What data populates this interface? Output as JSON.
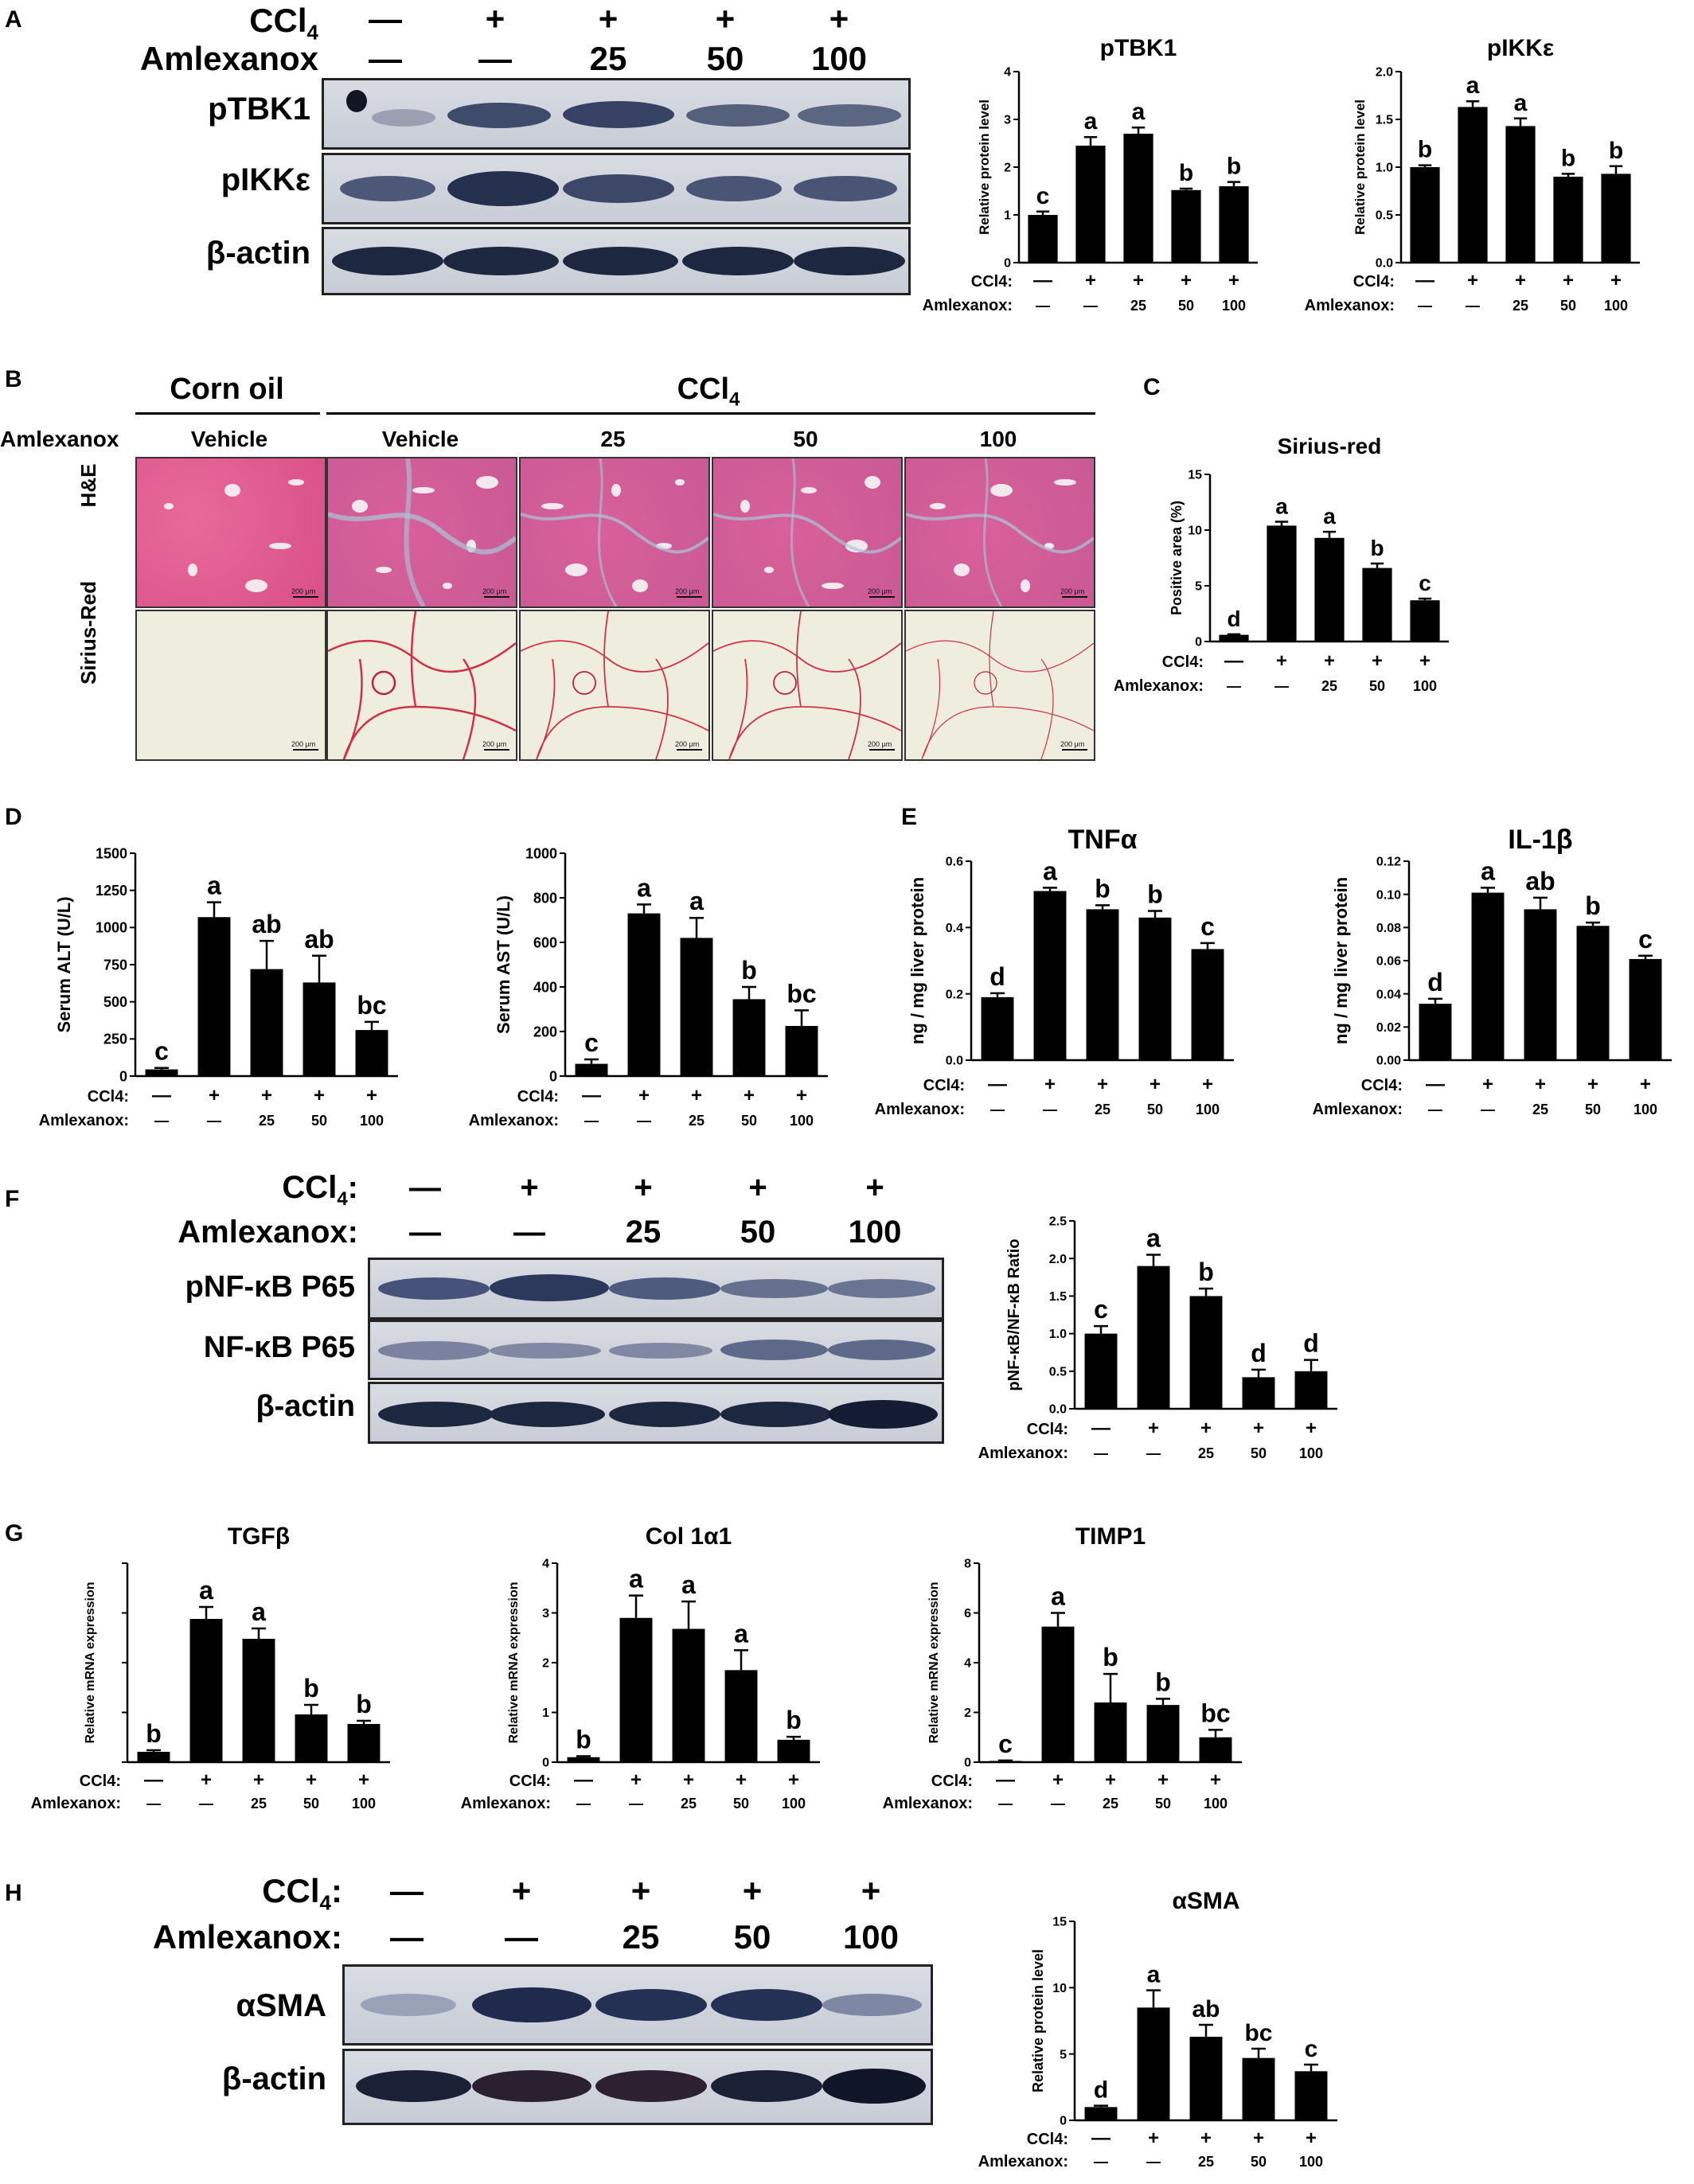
{
  "panels": {
    "A": {
      "letter": "A",
      "conditions": {
        "ccl4_label": "CCl4",
        "amlexanox_label": "Amlexanox",
        "ccl4": [
          "—",
          "+",
          "+",
          "+",
          "+"
        ],
        "amlexanox": [
          "—",
          "—",
          "25",
          "50",
          "100"
        ]
      },
      "blot_labels": [
        "pTBK1",
        "pIKKε",
        "β-actin"
      ]
    },
    "B": {
      "letter": "B",
      "group_corn_oil": "Corn oil",
      "group_ccl4": "CCl4",
      "amlexanox_label": "Amlexanox",
      "columns": [
        "Vehicle",
        "Vehicle",
        "25",
        "50",
        "100"
      ],
      "rows": [
        "H&E",
        "Sirius-Red"
      ],
      "scale_bar": "200 μm"
    },
    "C": {
      "letter": "C"
    },
    "D": {
      "letter": "D"
    },
    "E": {
      "letter": "E"
    },
    "F": {
      "letter": "F",
      "conditions": {
        "ccl4_label": "CCl4:",
        "amlexanox_label": "Amlexanox:",
        "ccl4": [
          "—",
          "+",
          "+",
          "+",
          "+"
        ],
        "amlexanox": [
          "—",
          "—",
          "25",
          "50",
          "100"
        ]
      },
      "blot_labels": [
        "pNF-κB P65",
        "NF-κB P65",
        "β-actin"
      ]
    },
    "G": {
      "letter": "G"
    },
    "H": {
      "letter": "H",
      "conditions": {
        "ccl4_label": "CCl4:",
        "amlexanox_label": "Amlexanox:",
        "ccl4": [
          "—",
          "+",
          "+",
          "+",
          "+"
        ],
        "amlexanox": [
          "—",
          "—",
          "25",
          "50",
          "100"
        ]
      },
      "blot_labels": [
        "αSMA",
        "β-actin"
      ]
    }
  },
  "x_conditions": {
    "ccl4_label": "CCl4:",
    "amlexanox_label": "Amlexanox:",
    "ccl4": [
      "—",
      "+",
      "+",
      "+",
      "+"
    ],
    "amlexanox": [
      "—",
      "—",
      "25",
      "50",
      "100"
    ]
  },
  "chart_data": [
    {
      "id": "pTBK1",
      "type": "bar",
      "title": "pTBK1",
      "ylabel": "Relative protein level",
      "categories": [
        "1",
        "2",
        "3",
        "4",
        "5"
      ],
      "values": [
        1.0,
        2.45,
        2.7,
        1.52,
        1.6
      ],
      "errors": [
        0.07,
        0.18,
        0.13,
        0.03,
        0.09
      ],
      "letters": [
        "c",
        "a",
        "a",
        "b",
        "b"
      ],
      "ylim": [
        0,
        4
      ],
      "yticks": [
        0,
        1,
        2,
        3,
        4
      ]
    },
    {
      "id": "pIKKe",
      "type": "bar",
      "title": "pIKKε",
      "ylabel": "Relative protein level",
      "categories": [
        "1",
        "2",
        "3",
        "4",
        "5"
      ],
      "values": [
        1.0,
        1.63,
        1.43,
        0.9,
        0.93
      ],
      "errors": [
        0.02,
        0.06,
        0.08,
        0.03,
        0.08
      ],
      "letters": [
        "b",
        "a",
        "a",
        "b",
        "b"
      ],
      "ylim": [
        0,
        2.0
      ],
      "yticks": [
        0.0,
        0.5,
        1.0,
        1.5,
        2.0
      ]
    },
    {
      "id": "sirius",
      "type": "bar",
      "title": "Sirius-red",
      "ylabel": "Positive area (%)",
      "categories": [
        "1",
        "2",
        "3",
        "4",
        "5"
      ],
      "values": [
        0.6,
        10.4,
        9.3,
        6.6,
        3.7
      ],
      "errors": [
        0.05,
        0.35,
        0.55,
        0.4,
        0.15
      ],
      "letters": [
        "d",
        "a",
        "a",
        "b",
        "c"
      ],
      "ylim": [
        0,
        15
      ],
      "yticks": [
        0,
        5,
        10,
        15
      ]
    },
    {
      "id": "alt",
      "type": "bar",
      "title": "",
      "ylabel": "Serum ALT (U/L)",
      "categories": [
        "1",
        "2",
        "3",
        "4",
        "5"
      ],
      "values": [
        45,
        1070,
        720,
        630,
        310
      ],
      "errors": [
        10,
        100,
        190,
        180,
        55
      ],
      "letters": [
        "c",
        "a",
        "ab",
        "ab",
        "bc"
      ],
      "ylim": [
        0,
        1500
      ],
      "yticks": [
        0,
        250,
        500,
        750,
        1000,
        1250,
        1500
      ]
    },
    {
      "id": "ast",
      "type": "bar",
      "title": "",
      "ylabel": "Serum AST (U/L)",
      "categories": [
        "1",
        "2",
        "3",
        "4",
        "5"
      ],
      "values": [
        55,
        730,
        620,
        345,
        225
      ],
      "errors": [
        20,
        40,
        90,
        55,
        70
      ],
      "letters": [
        "c",
        "a",
        "a",
        "b",
        "bc"
      ],
      "ylim": [
        0,
        1000
      ],
      "yticks": [
        0,
        200,
        400,
        600,
        800,
        1000
      ]
    },
    {
      "id": "tnfa",
      "type": "bar",
      "title": "TNFα",
      "ylabel": "ng / mg liver protein",
      "categories": [
        "1",
        "2",
        "3",
        "4",
        "5"
      ],
      "values": [
        0.19,
        0.51,
        0.455,
        0.43,
        0.335
      ],
      "errors": [
        0.012,
        0.01,
        0.012,
        0.02,
        0.018
      ],
      "letters": [
        "d",
        "a",
        "b",
        "b",
        "c"
      ],
      "ylim": [
        0,
        0.6
      ],
      "yticks": [
        0.0,
        0.2,
        0.4,
        0.6
      ]
    },
    {
      "id": "il1b",
      "type": "bar",
      "title": "IL-1β",
      "ylabel": "ng / mg liver protein",
      "categories": [
        "1",
        "2",
        "3",
        "4",
        "5"
      ],
      "values": [
        0.034,
        0.101,
        0.091,
        0.081,
        0.061
      ],
      "errors": [
        0.003,
        0.003,
        0.007,
        0.002,
        0.002
      ],
      "letters": [
        "d",
        "a",
        "ab",
        "b",
        "c"
      ],
      "ylim": [
        0,
        0.12
      ],
      "yticks": [
        0.0,
        0.02,
        0.04,
        0.06,
        0.08,
        0.1,
        0.12
      ]
    },
    {
      "id": "nfkb",
      "type": "bar",
      "title": "",
      "ylabel": "pNF-κB/NF-κB Ratio",
      "categories": [
        "1",
        "2",
        "3",
        "4",
        "5"
      ],
      "values": [
        1.0,
        1.9,
        1.5,
        0.42,
        0.5
      ],
      "errors": [
        0.1,
        0.15,
        0.1,
        0.1,
        0.15
      ],
      "letters": [
        "c",
        "a",
        "b",
        "d",
        "d"
      ],
      "ylim": [
        0,
        2.5
      ],
      "yticks": [
        0.0,
        0.5,
        1.0,
        1.5,
        2.0,
        2.5
      ]
    },
    {
      "id": "tgfb",
      "type": "bar",
      "title": "TGFβ",
      "ylabel": "Relative mRNA expression",
      "categories": [
        "1",
        "2",
        "3",
        "4",
        "5"
      ],
      "values": [
        0.13,
        1.8,
        1.55,
        0.6,
        0.48
      ],
      "errors": [
        0.02,
        0.15,
        0.13,
        0.12,
        0.04
      ],
      "letters": [
        "b",
        "a",
        "a",
        "b",
        "b"
      ],
      "ylim": [
        0,
        2.5
      ],
      "yticks": []
    },
    {
      "id": "col1a1",
      "type": "bar",
      "title": "Col 1α1",
      "ylabel": "Relative mRNA expression",
      "categories": [
        "1",
        "2",
        "3",
        "4",
        "5"
      ],
      "values": [
        0.1,
        2.9,
        2.68,
        1.85,
        0.45
      ],
      "errors": [
        0.02,
        0.45,
        0.55,
        0.4,
        0.06
      ],
      "letters": [
        "b",
        "a",
        "a",
        "a",
        "b"
      ],
      "ylim": [
        0,
        4
      ],
      "yticks": [
        0,
        1,
        2,
        3,
        4
      ]
    },
    {
      "id": "timp1",
      "type": "bar",
      "title": "TIMP1",
      "ylabel": "Relative mRNA expression",
      "categories": [
        "1",
        "2",
        "3",
        "4",
        "5"
      ],
      "values": [
        0.05,
        5.45,
        2.4,
        2.3,
        1.0
      ],
      "errors": [
        0.02,
        0.55,
        1.15,
        0.25,
        0.3
      ],
      "letters": [
        "c",
        "a",
        "b",
        "b",
        "bc"
      ],
      "ylim": [
        0,
        8
      ],
      "yticks": [
        0,
        2,
        4,
        6,
        8
      ]
    },
    {
      "id": "asma",
      "type": "bar",
      "title": "αSMA",
      "ylabel": "Relative protein level",
      "categories": [
        "1",
        "2",
        "3",
        "4",
        "5"
      ],
      "values": [
        1.0,
        8.5,
        6.3,
        4.7,
        3.7
      ],
      "errors": [
        0.1,
        1.3,
        0.9,
        0.7,
        0.5
      ],
      "letters": [
        "d",
        "a",
        "ab",
        "bc",
        "c"
      ],
      "ylim": [
        0,
        15
      ],
      "yticks": [
        0,
        5,
        10,
        15
      ]
    }
  ]
}
